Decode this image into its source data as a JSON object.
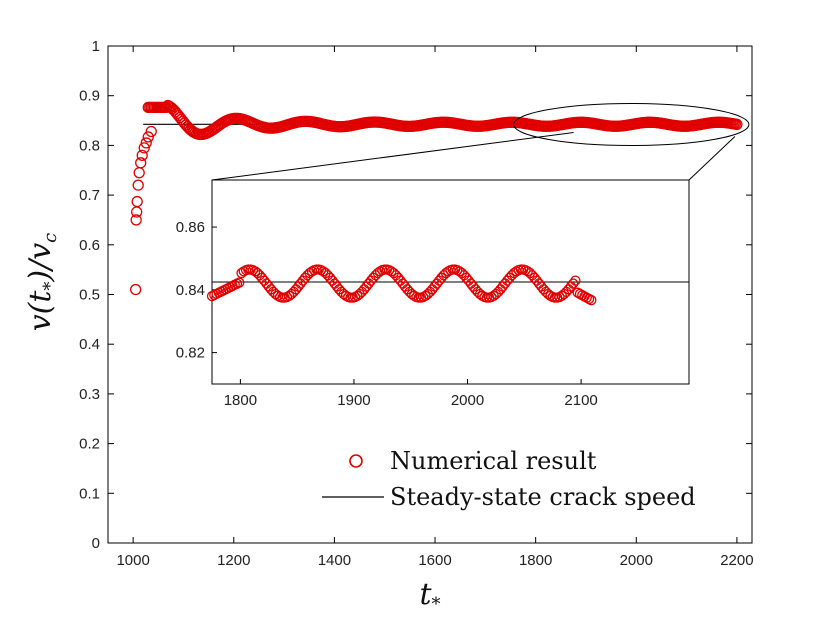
{
  "chart_data": {
    "type": "scatter",
    "main": {
      "xlabel": "t*",
      "ylabel": "v(t*)/vc",
      "xlim": [
        950,
        2230
      ],
      "ylim": [
        0,
        1
      ],
      "xticks": [
        1000,
        1200,
        1400,
        1600,
        1800,
        2000,
        2200
      ],
      "yticks": [
        0,
        0.1,
        0.2,
        0.3,
        0.4,
        0.5,
        0.6,
        0.7,
        0.8,
        0.9,
        1
      ],
      "xtick_labels": [
        "1000",
        "1200",
        "1400",
        "1600",
        "1800",
        "2000",
        "2200"
      ],
      "ytick_labels": [
        "0",
        "0.1",
        "0.2",
        "0.3",
        "0.4",
        "0.5",
        "0.6",
        "0.7",
        "0.8",
        "0.9",
        "1"
      ],
      "steady_state_speed": 0.8425,
      "series": [
        {
          "name": "Numerical result",
          "marker": "circle-open",
          "color": "#e00000",
          "initial_points": [
            [
              1005,
              0.51
            ],
            [
              1006,
              0.65
            ],
            [
              1007,
              0.666
            ],
            [
              1008,
              0.687
            ],
            [
              1010,
              0.72
            ],
            [
              1012,
              0.745
            ],
            [
              1015,
              0.765
            ],
            [
              1018,
              0.78
            ],
            [
              1022,
              0.795
            ],
            [
              1026,
              0.805
            ],
            [
              1030,
              0.817
            ],
            [
              1036,
              0.828
            ]
          ],
          "oscillation": {
            "t_start": 1030,
            "t_end": 2200,
            "step": 3
          }
        },
        {
          "name": "Steady-state crack speed",
          "type": "line",
          "color": "#000000",
          "x": [
            1020,
            2200
          ],
          "y": [
            0.8425,
            0.8425
          ]
        }
      ]
    },
    "inset": {
      "xlim": [
        1775,
        2195
      ],
      "ylim": [
        0.81,
        0.875
      ],
      "xticks": [
        1800,
        1900,
        2000,
        2100
      ],
      "yticks": [
        0.82,
        0.84,
        0.86
      ],
      "xtick_labels": [
        "1800",
        "1900",
        "2000",
        "2100"
      ],
      "ytick_labels": [
        "0.82",
        "0.84",
        "0.86"
      ],
      "steady_state_speed": 0.8425,
      "oscillation": {
        "t_start": 1775,
        "t_end": 2110,
        "step": 2
      },
      "zoom_region": {
        "t_min": 1780,
        "t_max": 2200,
        "v_center": 0.842
      }
    },
    "legend": {
      "position": "bottom-right",
      "entries": [
        "Numerical result",
        "Steady-state crack speed"
      ]
    }
  }
}
